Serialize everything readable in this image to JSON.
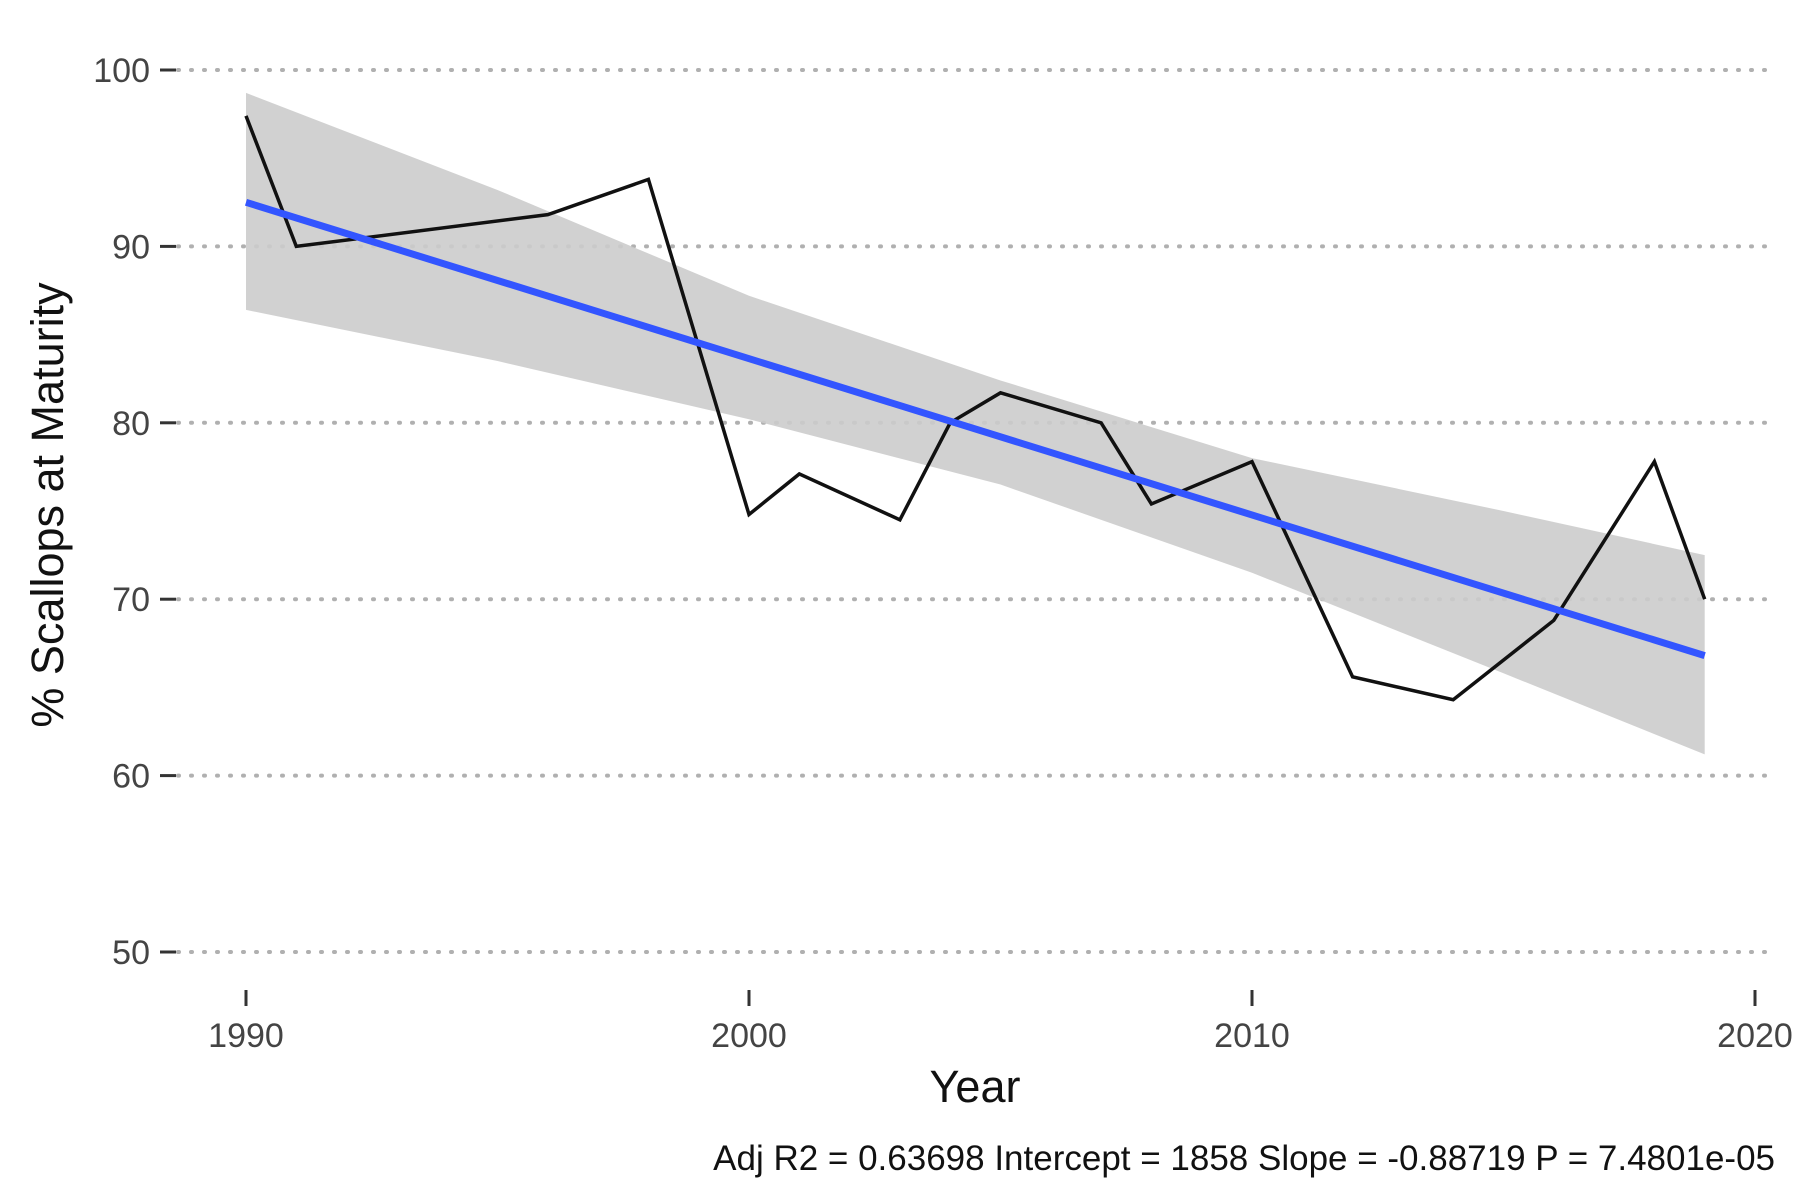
{
  "chart_data": {
    "type": "line",
    "title": "",
    "xlabel": "Year",
    "ylabel": "% Scallops at Maturity",
    "caption": "Adj R2 =  0.63698 Intercept = 1858  Slope = -0.88719  P = 7.4801e-05",
    "xlim": [
      1988.8,
      2020
    ],
    "ylim": [
      48,
      102
    ],
    "x_ticks": [
      1990,
      2000,
      2010,
      2020
    ],
    "y_ticks": [
      50,
      60,
      70,
      80,
      90,
      100
    ],
    "grid": "horizontal dotted",
    "legend": "none",
    "series": [
      {
        "x": [
          1990,
          1991,
          1996,
          1998,
          2000,
          2001,
          2003,
          2004,
          2005,
          2007,
          2008,
          2010,
          2012,
          2014,
          2016,
          2018,
          2019
        ],
        "y": [
          97.4,
          90.0,
          91.8,
          93.8,
          74.8,
          77.1,
          74.5,
          80.0,
          81.7,
          80.0,
          75.4,
          77.8,
          65.6,
          64.3,
          68.8,
          77.8,
          70.0
        ]
      }
    ],
    "trend_line": {
      "x": [
        1990,
        2019
      ],
      "y": [
        92.5,
        66.8
      ]
    },
    "confidence_band": {
      "x": [
        1990,
        1995,
        2000,
        2005,
        2010,
        2015,
        2019
      ],
      "upper": [
        98.7,
        93.2,
        87.2,
        82.4,
        78.0,
        75.0,
        72.5
      ],
      "lower": [
        86.4,
        83.5,
        80.2,
        76.5,
        71.5,
        65.8,
        61.2
      ]
    },
    "colors": {
      "line": "#111111",
      "trend": "#3355ff",
      "band": "#cccccc",
      "grid": "#b0b0b0",
      "ticks": "#444444"
    }
  }
}
